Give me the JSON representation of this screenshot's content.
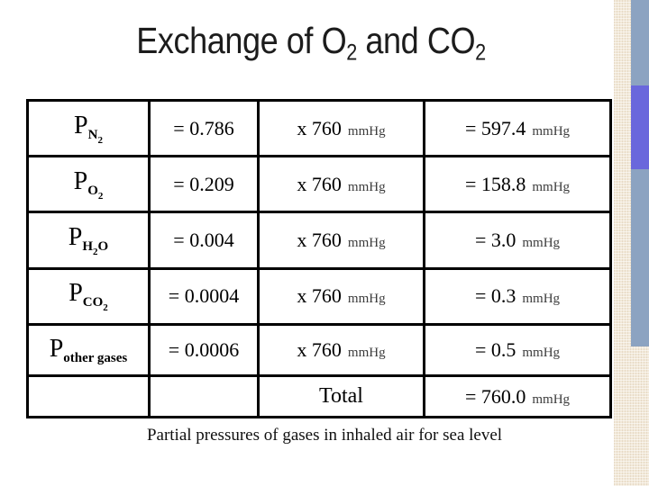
{
  "slide": {
    "title": {
      "part1": "Exchange of O",
      "sub1": "2",
      "part2": " and CO",
      "sub2": "2"
    },
    "caption": "Partial pressures of gases in inhaled air for sea level"
  },
  "table": {
    "rows": [
      {
        "label": [
          {
            "t": "P",
            "lv": 0
          },
          {
            "t": "N",
            "lv": 1
          },
          {
            "t": "2",
            "lv": 2
          }
        ],
        "fraction": "= 0.786",
        "multiplier": "x 760",
        "mult_unit": "mmHg",
        "result": "= 597.4",
        "result_unit": "mmHg"
      },
      {
        "label": [
          {
            "t": "P",
            "lv": 0
          },
          {
            "t": "O",
            "lv": 1
          },
          {
            "t": "2",
            "lv": 2
          }
        ],
        "fraction": "= 0.209",
        "multiplier": "x 760",
        "mult_unit": "mmHg",
        "result": "= 158.8",
        "result_unit": "mmHg"
      },
      {
        "label": [
          {
            "t": "P",
            "lv": 0
          },
          {
            "t": "H",
            "lv": 1
          },
          {
            "t": "2",
            "lv": 2
          },
          {
            "t": "O",
            "lv": 1
          }
        ],
        "fraction": "= 0.004",
        "multiplier": "x 760",
        "mult_unit": "mmHg",
        "result": "= 3.0",
        "result_unit": "mmHg"
      },
      {
        "label": [
          {
            "t": "P",
            "lv": 0
          },
          {
            "t": "CO",
            "lv": 1
          },
          {
            "t": "2",
            "lv": 2
          }
        ],
        "fraction": "= 0.0004",
        "multiplier": "x 760",
        "mult_unit": "mmHg",
        "result": "= 0.3",
        "result_unit": "mmHg"
      },
      {
        "label": [
          {
            "t": "P",
            "lv": 0
          },
          {
            "t": "other gases",
            "lv": 1
          }
        ],
        "fraction": "= 0.0006",
        "multiplier": "x 760",
        "mult_unit": "mmHg",
        "result": "= 0.5",
        "result_unit": "mmHg"
      },
      {
        "label": [],
        "fraction": "",
        "multiplier": "Total",
        "mult_unit": "",
        "total": true,
        "result": "= 760.0",
        "result_unit": "mmHg"
      }
    ]
  },
  "colors": {
    "background": "#ffffff",
    "table_border": "#000000",
    "unit_text": "#3c3c3c",
    "edge_texture": "#f2e9d9",
    "accent_bar": "#8ca3c1",
    "accent_highlight": "#6a67dc"
  }
}
